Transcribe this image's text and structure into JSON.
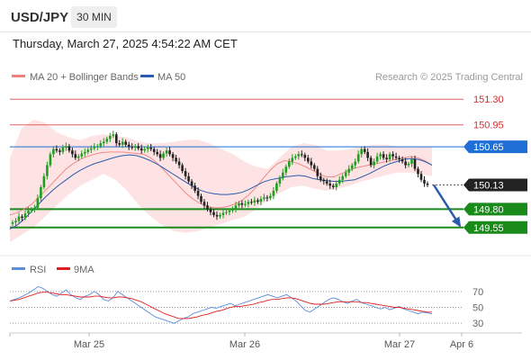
{
  "header": {
    "symbol": "USD/JPY",
    "timeframe": "30 MIN",
    "datetime": "Thursday, March 27, 2025 4:54:22 AM CET"
  },
  "legend": {
    "items": [
      {
        "label": "MA 20 + Bollinger Bands",
        "color": "#f08080"
      },
      {
        "label": "MA 50",
        "color": "#2b5cab"
      }
    ],
    "credit": "Research © 2025 Trading Central"
  },
  "rsi_legend": {
    "items": [
      {
        "label": "RSI",
        "color": "#5b8dd9"
      },
      {
        "label": "9MA",
        "color": "#e02020"
      }
    ]
  },
  "colors": {
    "up": "#1f9e1f",
    "down": "#222222",
    "bollinger_fill": "#fde3e3",
    "ma20": "#f08080",
    "ma50": "#2b5cab",
    "resistance": "#e06060",
    "pivot": "#1f6fd6",
    "support": "#1a8a1a",
    "current": "#222222",
    "arrow": "#2b5cab"
  },
  "chart_data": [
    {
      "type": "candlestick",
      "price_range": [
        149.4,
        151.45
      ],
      "x_ticks": [
        "Mar 25",
        "Mar 26",
        "Mar 27",
        "Apr 6"
      ],
      "levels": [
        {
          "value": 151.3,
          "label": "151.30",
          "kind": "resistance"
        },
        {
          "value": 150.95,
          "label": "150.95",
          "kind": "resistance"
        },
        {
          "value": 150.65,
          "label": "150.65",
          "kind": "pivot"
        },
        {
          "value": 150.13,
          "label": "150.13",
          "kind": "current"
        },
        {
          "value": 149.8,
          "label": "149.80",
          "kind": "support"
        },
        {
          "value": 149.55,
          "label": "149.55",
          "kind": "support"
        }
      ],
      "close_series": [
        149.62,
        149.64,
        149.7,
        149.68,
        149.74,
        149.78,
        149.8,
        149.82,
        149.95,
        150.1,
        150.25,
        150.4,
        150.55,
        150.62,
        150.6,
        150.58,
        150.64,
        150.66,
        150.6,
        150.55,
        150.5,
        150.52,
        150.56,
        150.58,
        150.61,
        150.63,
        150.65,
        150.66,
        150.7,
        150.72,
        150.76,
        150.8,
        150.82,
        150.7,
        150.68,
        150.72,
        150.68,
        150.65,
        150.64,
        150.66,
        150.63,
        150.6,
        150.62,
        150.64,
        150.62,
        150.58,
        150.55,
        150.5,
        150.56,
        150.6,
        150.55,
        150.5,
        150.45,
        150.4,
        150.32,
        150.25,
        150.18,
        150.12,
        150.05,
        149.98,
        149.9,
        149.85,
        149.8,
        149.76,
        149.72,
        149.7,
        149.72,
        149.75,
        149.76,
        149.78,
        149.8,
        149.85,
        149.88,
        149.86,
        149.87,
        149.9,
        149.89,
        149.92,
        149.9,
        149.94,
        149.96,
        149.95,
        149.98,
        150.05,
        150.15,
        150.22,
        150.3,
        150.38,
        150.45,
        150.5,
        150.52,
        150.55,
        150.54,
        150.5,
        150.45,
        150.4,
        150.35,
        150.25,
        150.2,
        150.18,
        150.15,
        150.12,
        150.1,
        150.15,
        150.2,
        150.25,
        150.3,
        150.35,
        150.4,
        150.45,
        150.55,
        150.62,
        150.58,
        150.5,
        150.4,
        150.45,
        150.52,
        150.55,
        150.5,
        150.48,
        150.55,
        150.52,
        150.5,
        150.48,
        150.45,
        150.4,
        150.42,
        150.48,
        150.35,
        150.28,
        150.2,
        150.15,
        150.13
      ],
      "ma20": [
        149.72,
        149.75,
        149.8,
        149.86,
        149.95,
        150.05,
        150.15,
        150.25,
        150.35,
        150.42,
        150.48,
        150.52,
        150.55,
        150.57,
        150.58,
        150.58,
        150.58,
        150.57,
        150.56,
        150.55,
        150.5,
        150.42,
        150.32,
        150.22,
        150.12,
        150.02,
        149.94,
        149.88,
        149.84,
        149.82,
        149.82,
        149.84,
        149.87,
        149.92,
        150.0,
        150.1,
        150.22,
        150.33,
        150.42,
        150.46,
        150.45,
        150.42,
        150.38,
        150.33,
        150.28,
        150.24,
        150.24,
        150.28,
        150.32,
        150.36,
        150.38,
        150.4,
        150.42,
        150.44,
        150.46,
        150.48,
        150.5,
        150.52,
        150.5,
        150.46,
        150.4
      ],
      "ma50": [
        149.53,
        149.58,
        149.66,
        149.76,
        149.86,
        149.96,
        150.05,
        150.13,
        150.2,
        150.27,
        150.33,
        150.38,
        150.42,
        150.45,
        150.48,
        150.51,
        150.53,
        150.54,
        150.53,
        150.5,
        150.46,
        150.41,
        150.35,
        150.29,
        150.23,
        150.17,
        150.11,
        150.06,
        150.03,
        150.01,
        150.0,
        150.0,
        150.01,
        150.03,
        150.07,
        150.12,
        150.17,
        150.2,
        150.22,
        150.24,
        150.25,
        150.26,
        150.25,
        150.22,
        150.2,
        150.19,
        150.18,
        150.18,
        150.19,
        150.2,
        150.24,
        150.28,
        150.33,
        150.38,
        150.42,
        150.45,
        150.48,
        150.49,
        150.48,
        150.45,
        150.4
      ],
      "bollinger_upper": [
        150.5,
        150.9,
        151.02,
        150.98,
        150.85,
        150.78,
        150.74,
        150.8,
        150.82,
        150.8,
        150.78,
        150.72,
        150.7,
        150.7,
        150.72,
        150.74,
        150.75,
        150.7,
        150.62,
        150.55,
        150.45,
        150.38,
        150.35,
        150.5,
        150.65,
        150.7,
        150.68,
        150.6,
        150.6,
        150.62,
        150.65,
        150.68,
        150.68,
        150.66,
        150.64,
        150.65,
        150.66
      ],
      "bollinger_lower": [
        149.35,
        149.45,
        149.55,
        149.7,
        149.85,
        150.0,
        150.12,
        150.2,
        150.28,
        150.2,
        150.05,
        149.85,
        149.7,
        149.58,
        149.5,
        149.48,
        149.5,
        149.55,
        149.6,
        149.65,
        149.7,
        149.8,
        149.92,
        150.02,
        150.1,
        150.12,
        150.08,
        150.05,
        150.08,
        150.12,
        150.18,
        150.22,
        150.26,
        150.3,
        150.3,
        150.28,
        150.25
      ],
      "projection": {
        "from": 150.13,
        "to": 149.55
      }
    },
    {
      "type": "line",
      "name": "RSI",
      "y_ticks": [
        70,
        50,
        30
      ],
      "ylim": [
        20,
        80
      ],
      "series": [
        {
          "name": "RSI",
          "values": [
            58,
            60,
            62,
            65,
            68,
            72,
            76,
            74,
            70,
            66,
            64,
            68,
            72,
            66,
            62,
            60,
            64,
            66,
            70,
            66,
            60,
            58,
            62,
            70,
            66,
            62,
            58,
            54,
            50,
            46,
            42,
            38,
            36,
            34,
            32,
            30,
            33,
            36,
            38,
            42,
            44,
            46,
            48,
            50,
            49,
            51,
            53,
            55,
            52,
            54,
            56,
            58,
            60,
            62,
            64,
            66,
            64,
            62,
            64,
            66,
            62,
            58,
            52,
            46,
            44,
            48,
            52,
            56,
            60,
            62,
            60,
            57,
            55,
            58,
            60,
            56,
            54,
            52,
            50,
            48,
            50,
            47,
            49,
            51,
            48,
            46,
            44,
            42,
            44,
            43,
            42
          ]
        },
        {
          "name": "9MA",
          "values": [
            58,
            59,
            60,
            62,
            64,
            66,
            68,
            69,
            69,
            68,
            67,
            66,
            66,
            65,
            64,
            63,
            63,
            63,
            64,
            64,
            63,
            62,
            62,
            63,
            63,
            62,
            61,
            59,
            57,
            54,
            51,
            48,
            45,
            42,
            40,
            38,
            36,
            36,
            36,
            37,
            38,
            40,
            41,
            43,
            45,
            46,
            48,
            50,
            51,
            51,
            52,
            53,
            54,
            56,
            57,
            59,
            60,
            60,
            61,
            62,
            62,
            61,
            59,
            57,
            55,
            54,
            54,
            54,
            55,
            56,
            57,
            57,
            57,
            57,
            57,
            56,
            56,
            55,
            54,
            53,
            52,
            51,
            50,
            50,
            49,
            48,
            47,
            46,
            45,
            44,
            44
          ]
        }
      ]
    }
  ]
}
